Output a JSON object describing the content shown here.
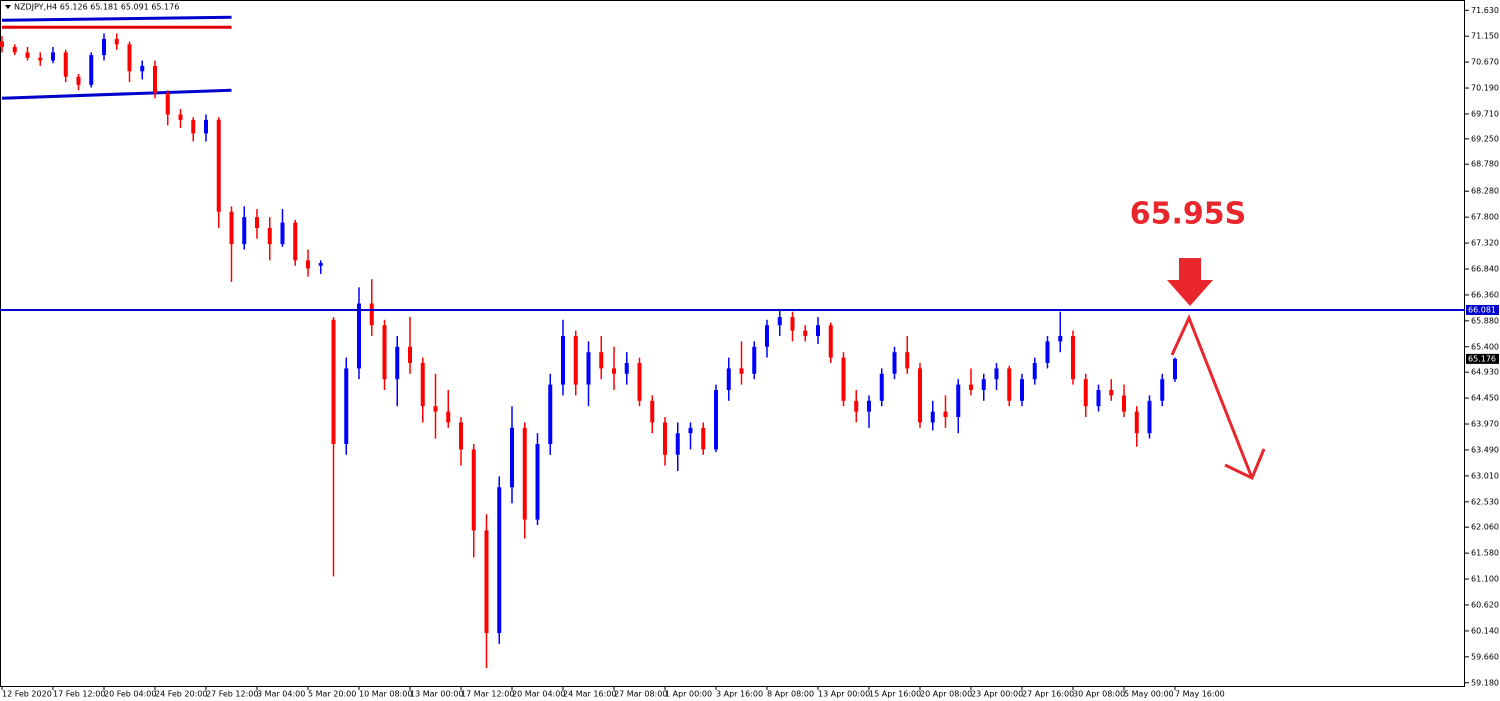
{
  "chart_data": {
    "type": "candlestick",
    "title": "NZDJPY,H4  65.126 65.181 65.091 65.176",
    "up_color": "#0000ff",
    "down_color": "#ff0000",
    "ylim": [
      59.12,
      71.82
    ],
    "yticks": [
      {
        "value": 71.63,
        "label": "71.630"
      },
      {
        "value": 71.15,
        "label": "71.150"
      },
      {
        "value": 70.67,
        "label": "70.670"
      },
      {
        "value": 70.19,
        "label": "70.190"
      },
      {
        "value": 69.71,
        "label": "69.710"
      },
      {
        "value": 69.25,
        "label": "69.250"
      },
      {
        "value": 68.78,
        "label": "68.780"
      },
      {
        "value": 68.28,
        "label": "68.280"
      },
      {
        "value": 67.8,
        "label": "67.800"
      },
      {
        "value": 67.32,
        "label": "67.320"
      },
      {
        "value": 66.84,
        "label": "66.840"
      },
      {
        "value": 66.36,
        "label": "66.360"
      },
      {
        "value": 65.88,
        "label": "65.880"
      },
      {
        "value": 65.4,
        "label": "65.400"
      },
      {
        "value": 64.93,
        "label": "64.930"
      },
      {
        "value": 64.45,
        "label": "64.450"
      },
      {
        "value": 63.97,
        "label": "63.970"
      },
      {
        "value": 63.49,
        "label": "63.490"
      },
      {
        "value": 63.01,
        "label": "63.010"
      },
      {
        "value": 62.53,
        "label": "62.530"
      },
      {
        "value": 62.06,
        "label": "62.060"
      },
      {
        "value": 61.58,
        "label": "61.580"
      },
      {
        "value": 61.1,
        "label": "61.100"
      },
      {
        "value": 60.62,
        "label": "60.620"
      },
      {
        "value": 60.14,
        "label": "60.140"
      },
      {
        "value": 59.66,
        "label": "59.660"
      },
      {
        "value": 59.18,
        "label": "59.180"
      }
    ],
    "categories": [
      "12 Feb 2020",
      null,
      null,
      null,
      "17 Feb 12:00",
      null,
      null,
      null,
      "20 Feb 04:00",
      null,
      null,
      null,
      "24 Feb 20:00",
      null,
      null,
      null,
      "27 Feb 12:00",
      null,
      null,
      null,
      "3 Mar 04:00",
      null,
      null,
      null,
      "5 Mar 20:00",
      null,
      null,
      null,
      "10 Mar 08:00",
      null,
      null,
      null,
      "13 Mar 00:00",
      null,
      null,
      null,
      "17 Mar 12:00",
      null,
      null,
      null,
      "20 Mar 04:00",
      null,
      null,
      null,
      "24 Mar 16:00",
      null,
      null,
      null,
      "27 Mar 08:00",
      null,
      null,
      null,
      "1 Apr 00:00",
      null,
      null,
      null,
      "3 Apr 16:00",
      null,
      null,
      null,
      "8 Apr 08:00",
      null,
      null,
      null,
      "13 Apr 00:00",
      null,
      null,
      null,
      "15 Apr 16:00",
      null,
      null,
      null,
      "20 Apr 08:00",
      null,
      null,
      null,
      "23 Apr 00:00",
      null,
      null,
      null,
      "27 Apr 16:00",
      null,
      null,
      null,
      "30 Apr 08:00",
      null,
      null,
      null,
      "5 May 00:00",
      null,
      null,
      null,
      "7 May 16:00"
    ],
    "candles": [
      [
        71.05,
        71.15,
        70.85,
        70.95
      ],
      [
        70.95,
        71.0,
        70.8,
        70.85
      ],
      [
        70.85,
        70.95,
        70.7,
        70.75
      ],
      [
        70.75,
        70.85,
        70.6,
        70.7
      ],
      [
        70.7,
        70.95,
        70.65,
        70.85
      ],
      [
        70.85,
        70.9,
        70.3,
        70.4
      ],
      [
        70.4,
        70.45,
        70.15,
        70.25
      ],
      [
        70.25,
        70.85,
        70.2,
        70.8
      ],
      [
        70.8,
        71.2,
        70.7,
        71.1
      ],
      [
        71.1,
        71.2,
        70.9,
        71.0
      ],
      [
        71.0,
        71.05,
        70.3,
        70.5
      ],
      [
        70.5,
        70.7,
        70.35,
        70.6
      ],
      [
        70.6,
        70.7,
        70.0,
        70.1
      ],
      [
        70.1,
        70.15,
        69.5,
        69.7
      ],
      [
        69.7,
        69.8,
        69.45,
        69.6
      ],
      [
        69.6,
        69.65,
        69.2,
        69.35
      ],
      [
        69.35,
        69.7,
        69.2,
        69.6
      ],
      [
        69.6,
        69.65,
        67.6,
        67.9
      ],
      [
        67.9,
        68.0,
        66.6,
        67.3
      ],
      [
        67.3,
        68.0,
        67.2,
        67.8
      ],
      [
        67.8,
        67.95,
        67.4,
        67.6
      ],
      [
        67.6,
        67.8,
        67.0,
        67.3
      ],
      [
        67.3,
        67.95,
        67.25,
        67.7
      ],
      [
        67.7,
        67.75,
        66.9,
        67.0
      ],
      [
        67.0,
        67.2,
        66.7,
        66.85
      ],
      [
        66.9,
        67.0,
        66.75,
        66.95
      ],
      [
        65.9,
        65.95,
        61.15,
        63.6
      ],
      [
        63.6,
        65.2,
        63.4,
        65.0
      ],
      [
        65.0,
        66.5,
        64.8,
        66.2
      ],
      [
        66.2,
        66.65,
        65.6,
        65.8
      ],
      [
        65.8,
        65.9,
        64.6,
        64.8
      ],
      [
        64.8,
        65.6,
        64.3,
        65.4
      ],
      [
        65.4,
        65.95,
        64.9,
        65.1
      ],
      [
        65.1,
        65.2,
        64.0,
        64.3
      ],
      [
        64.3,
        64.9,
        63.7,
        64.2
      ],
      [
        64.2,
        64.6,
        63.9,
        64.0
      ],
      [
        64.0,
        64.1,
        63.2,
        63.5
      ],
      [
        63.5,
        63.6,
        61.5,
        62.0
      ],
      [
        62.0,
        62.3,
        59.45,
        60.1
      ],
      [
        60.1,
        63.0,
        59.9,
        62.8
      ],
      [
        62.8,
        64.3,
        62.5,
        63.9
      ],
      [
        63.9,
        64.0,
        61.85,
        62.2
      ],
      [
        62.2,
        63.8,
        62.1,
        63.6
      ],
      [
        63.6,
        64.9,
        63.4,
        64.7
      ],
      [
        64.7,
        65.9,
        64.5,
        65.6
      ],
      [
        65.6,
        65.7,
        64.5,
        64.7
      ],
      [
        64.7,
        65.5,
        64.3,
        65.3
      ],
      [
        65.3,
        65.6,
        64.8,
        65.0
      ],
      [
        65.0,
        65.4,
        64.6,
        64.9
      ],
      [
        64.9,
        65.3,
        64.7,
        65.1
      ],
      [
        65.1,
        65.2,
        64.3,
        64.4
      ],
      [
        64.4,
        64.5,
        63.8,
        64.0
      ],
      [
        64.0,
        64.1,
        63.2,
        63.4
      ],
      [
        63.4,
        64.0,
        63.1,
        63.8
      ],
      [
        63.8,
        64.0,
        63.5,
        63.9
      ],
      [
        63.9,
        64.0,
        63.4,
        63.5
      ],
      [
        63.5,
        64.7,
        63.45,
        64.6
      ],
      [
        64.6,
        65.2,
        64.4,
        65.0
      ],
      [
        65.0,
        65.5,
        64.7,
        64.9
      ],
      [
        64.9,
        65.5,
        64.8,
        65.4
      ],
      [
        65.4,
        65.9,
        65.2,
        65.8
      ],
      [
        65.8,
        66.1,
        65.6,
        65.95
      ],
      [
        65.95,
        66.05,
        65.5,
        65.7
      ],
      [
        65.7,
        65.8,
        65.5,
        65.6
      ],
      [
        65.6,
        65.95,
        65.45,
        65.8
      ],
      [
        65.8,
        65.85,
        65.1,
        65.2
      ],
      [
        65.2,
        65.3,
        64.3,
        64.4
      ],
      [
        64.4,
        64.6,
        64.0,
        64.2
      ],
      [
        64.2,
        64.5,
        63.9,
        64.4
      ],
      [
        64.4,
        65.0,
        64.3,
        64.9
      ],
      [
        64.9,
        65.4,
        64.8,
        65.3
      ],
      [
        65.3,
        65.6,
        64.9,
        65.0
      ],
      [
        65.0,
        65.1,
        63.9,
        64.0
      ],
      [
        64.0,
        64.4,
        63.85,
        64.2
      ],
      [
        64.2,
        64.5,
        63.9,
        64.1
      ],
      [
        64.1,
        64.8,
        63.8,
        64.7
      ],
      [
        64.7,
        65.0,
        64.5,
        64.6
      ],
      [
        64.6,
        64.9,
        64.4,
        64.8
      ],
      [
        64.8,
        65.1,
        64.6,
        65.0
      ],
      [
        65.0,
        65.05,
        64.3,
        64.4
      ],
      [
        64.4,
        64.9,
        64.3,
        64.8
      ],
      [
        64.8,
        65.2,
        64.7,
        65.1
      ],
      [
        65.1,
        65.6,
        65.0,
        65.5
      ],
      [
        65.5,
        66.05,
        65.3,
        65.6
      ],
      [
        65.6,
        65.7,
        64.7,
        64.8
      ],
      [
        64.8,
        64.9,
        64.1,
        64.3
      ],
      [
        64.3,
        64.7,
        64.2,
        64.6
      ],
      [
        64.6,
        64.8,
        64.4,
        64.5
      ],
      [
        64.5,
        64.7,
        64.1,
        64.2
      ],
      [
        64.2,
        64.3,
        63.55,
        63.8
      ],
      [
        63.8,
        64.5,
        63.7,
        64.4
      ],
      [
        64.4,
        64.9,
        64.3,
        64.8
      ],
      [
        64.8,
        65.2,
        64.75,
        65.176
      ]
    ],
    "level": {
      "value": 66.081,
      "color": "#0000cc"
    },
    "current_price": 65.176,
    "trend_lines": [
      {
        "color": "#0000cc",
        "from": [
          0,
          71.445
        ],
        "to": [
          18,
          71.5
        ]
      },
      {
        "color": "#e00000",
        "from": [
          0,
          71.316
        ],
        "to": [
          18,
          71.316
        ]
      },
      {
        "color": "#0000cc",
        "from": [
          0,
          70.002
        ],
        "to": [
          18,
          70.15
        ]
      }
    ],
    "annotation": "65.95S"
  }
}
